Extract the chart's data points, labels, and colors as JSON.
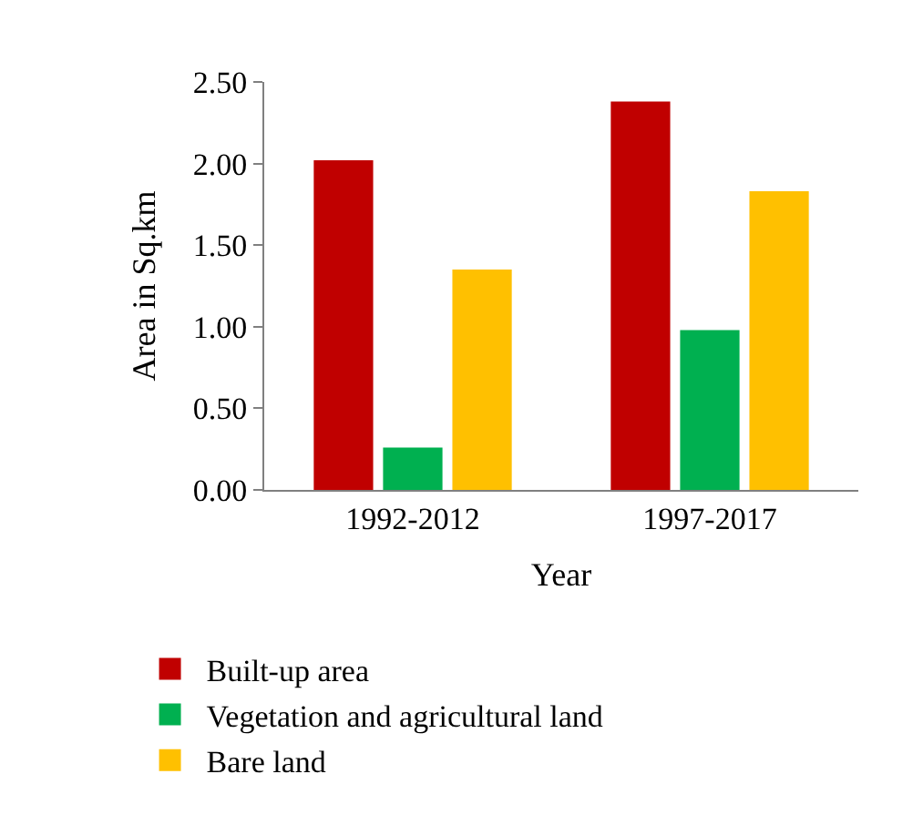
{
  "chart_data": {
    "type": "bar",
    "xlabel": "Year",
    "ylabel": "Area in Sq.km",
    "categories": [
      "1992-2012",
      "1997-2017"
    ],
    "series": [
      {
        "name": "Built-up area",
        "color": "#c00000",
        "values": [
          2.02,
          2.38
        ]
      },
      {
        "name": "Vegetation and agricultural land",
        "color": "#00b050",
        "values": [
          0.26,
          0.98
        ]
      },
      {
        "name": "Bare land",
        "color": "#ffc000",
        "values": [
          1.35,
          1.83
        ]
      }
    ],
    "ylim": [
      0,
      2.5
    ],
    "yticks": [
      {
        "value": 0,
        "label": "0.00"
      },
      {
        "value": 0.5,
        "label": "0.50"
      },
      {
        "value": 1,
        "label": "1.00"
      },
      {
        "value": 1.5,
        "label": "1.50"
      },
      {
        "value": 2,
        "label": "2.00"
      },
      {
        "value": 2.5,
        "label": "2.50"
      }
    ],
    "legend": "bottom"
  }
}
